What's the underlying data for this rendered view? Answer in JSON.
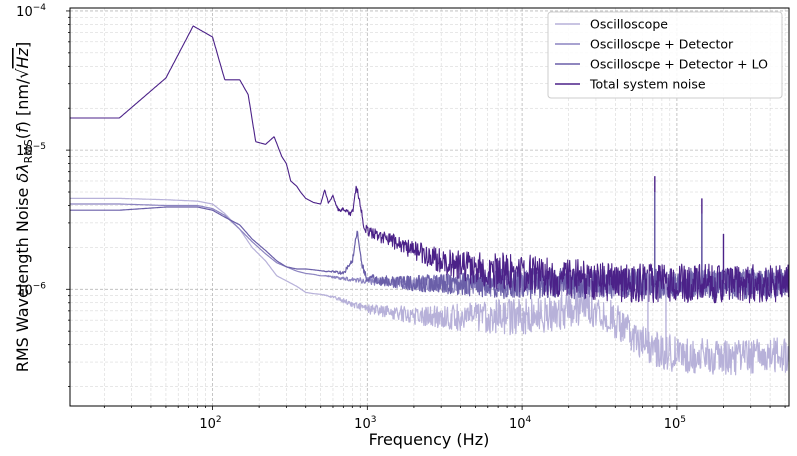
{
  "chart_data": {
    "type": "line",
    "title": "",
    "xlabel": "Frequency (Hz)",
    "ylabel": "RMS Wavelength Noise δλ_RMS(f) [nm/√Hz]",
    "xscale": "log",
    "yscale": "log",
    "xlim": [
      12,
      530000
    ],
    "ylim": [
      1.45e-07,
      0.000105
    ],
    "grid": true,
    "legend_position": "top-right",
    "x_ticks": [
      {
        "value": 100,
        "mantissa": "10",
        "exp": "2"
      },
      {
        "value": 1000,
        "mantissa": "10",
        "exp": "3"
      },
      {
        "value": 10000,
        "mantissa": "10",
        "exp": "4"
      },
      {
        "value": 100000,
        "mantissa": "10",
        "exp": "5"
      }
    ],
    "y_ticks": [
      {
        "value": 1e-06,
        "mantissa": "10",
        "exp": "−6"
      },
      {
        "value": 1e-05,
        "mantissa": "10",
        "exp": "−5"
      },
      {
        "value": 0.0001,
        "mantissa": "10",
        "exp": "−4"
      }
    ],
    "series": [
      {
        "name": "Oscilloscope",
        "color": "#b7b1d9",
        "x": [
          12,
          25,
          50,
          80,
          100,
          120,
          150,
          180,
          220,
          260,
          300,
          350,
          400,
          450,
          500,
          550,
          600,
          700,
          800,
          900,
          1000,
          1500,
          2000,
          3000,
          5000,
          7000,
          10000,
          15000,
          20000,
          25000,
          30000,
          40000,
          50000,
          60000,
          80000,
          100000,
          150000,
          200000,
          300000,
          530000
        ],
        "y": [
          4.5e-06,
          4.5e-06,
          4.4e-06,
          4.3e-06,
          4.1e-06,
          3.5e-06,
          2.7e-06,
          2e-06,
          1.6e-06,
          1.25e-06,
          1.15e-06,
          1.05e-06,
          9.5e-07,
          9.3e-07,
          9.2e-07,
          9e-07,
          8.8e-07,
          8.3e-07,
          7.8e-07,
          7.5e-07,
          7.2e-07,
          6.8e-07,
          6.5e-07,
          6.3e-07,
          6.3e-07,
          6.4e-07,
          6.3e-07,
          6.6e-07,
          7.2e-07,
          7.5e-07,
          7.2e-07,
          6e-07,
          4.8e-07,
          4e-07,
          3.6e-07,
          3.4e-07,
          3.3e-07,
          3.2e-07,
          3.3e-07,
          3.4e-07
        ],
        "noise": 0.13
      },
      {
        "name": "Oscilloscpe + Detector",
        "color": "#8c84c0",
        "x": [
          12,
          25,
          50,
          80,
          100,
          120,
          150,
          180,
          220,
          260,
          300,
          350,
          400,
          450,
          500,
          550,
          600,
          700,
          800,
          1000,
          1500,
          2000,
          5000,
          10000,
          20000,
          50000,
          100000,
          200000,
          530000
        ],
        "y": [
          4.1e-06,
          4.1e-06,
          4e-06,
          4e-06,
          3.8e-06,
          3.4e-06,
          2.7e-06,
          2.2e-06,
          1.8e-06,
          1.55e-06,
          1.45e-06,
          1.35e-06,
          1.3e-06,
          1.28e-06,
          1.25e-06,
          1.25e-06,
          1.22e-06,
          1.2e-06,
          1.18e-06,
          1.15e-06,
          1.12e-06,
          1.1e-06,
          1.1e-06,
          1.1e-06,
          1.1e-06,
          1.1e-06,
          1.1e-06,
          1.1e-06,
          1.1e-06
        ],
        "noise": 0.1
      },
      {
        "name": "Oscilloscpe + Detector + LO",
        "color": "#6a5fa8",
        "x": [
          12,
          25,
          50,
          80,
          100,
          120,
          150,
          180,
          220,
          260,
          300,
          350,
          400,
          450,
          500,
          550,
          600,
          700,
          800,
          860,
          920,
          1000,
          1500,
          2000,
          5000,
          10000,
          20000,
          50000,
          100000,
          200000,
          530000
        ],
        "y": [
          3.7e-06,
          3.7e-06,
          3.9e-06,
          3.9e-06,
          3.7e-06,
          3.3e-06,
          2.9e-06,
          2.3e-06,
          1.9e-06,
          1.6e-06,
          1.45e-06,
          1.4e-06,
          1.4e-06,
          1.38e-06,
          1.36e-06,
          1.34e-06,
          1.35e-06,
          1.3e-06,
          1.6e-06,
          2.6e-06,
          1.5e-06,
          1.2e-06,
          1.12e-06,
          1.1e-06,
          1.1e-06,
          1.1e-06,
          1.1e-06,
          1.1e-06,
          1.1e-06,
          1.1e-06,
          1.1e-06
        ],
        "noise": 0.11
      },
      {
        "name": "Total system noise",
        "color": "#4b2188",
        "x": [
          12,
          25,
          50,
          75,
          100,
          120,
          150,
          170,
          190,
          220,
          250,
          280,
          300,
          320,
          350,
          370,
          400,
          450,
          500,
          530,
          560,
          600,
          650,
          700,
          750,
          800,
          850,
          900,
          950,
          1000,
          1500,
          2000,
          3000,
          5000,
          10000,
          20000,
          50000,
          100000,
          200000,
          530000
        ],
        "y": [
          1.7e-05,
          1.7e-05,
          3.3e-05,
          7.8e-05,
          6.5e-05,
          3.2e-05,
          3.2e-05,
          2.5e-05,
          1.15e-05,
          1.1e-05,
          1.25e-05,
          9e-06,
          8e-06,
          6e-06,
          5.5e-06,
          5e-06,
          4.5e-06,
          4.2e-06,
          4.1e-06,
          5.2e-06,
          4.2e-06,
          4.7e-06,
          3.7e-06,
          3.8e-06,
          3.6e-06,
          3.5e-06,
          5.5e-06,
          4e-06,
          2.9e-06,
          2.6e-06,
          2.2e-06,
          1.9e-06,
          1.6e-06,
          1.4e-06,
          1.3e-06,
          1.2e-06,
          1.1e-06,
          1.1e-06,
          1.1e-06,
          1.1e-06
        ],
        "noise": 0.14
      }
    ],
    "spikes": [
      {
        "x": 18000,
        "y": 1e-06,
        "series": 0
      },
      {
        "x": 65000,
        "y": 1.3e-06,
        "series": 0
      },
      {
        "x": 72000,
        "y": 6.5e-06,
        "series": 3
      },
      {
        "x": 72000,
        "y": 5e-06,
        "series": 2
      },
      {
        "x": 145000,
        "y": 4.5e-06,
        "series": 3
      },
      {
        "x": 145000,
        "y": 3.5e-06,
        "series": 2
      },
      {
        "x": 200000,
        "y": 2.5e-06,
        "series": 3
      },
      {
        "x": 85000,
        "y": 1.1e-06,
        "series": 0
      }
    ]
  }
}
